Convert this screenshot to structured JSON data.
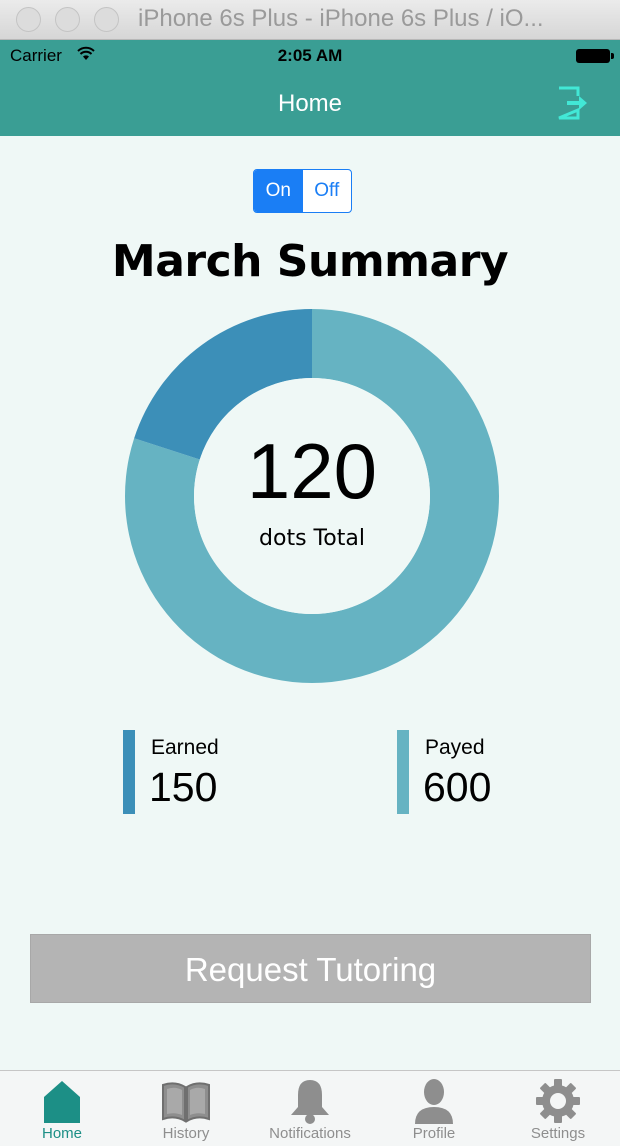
{
  "window": {
    "title": "iPhone 6s Plus - iPhone 6s Plus / iO..."
  },
  "status_bar": {
    "carrier": "Carrier",
    "time": "2:05 AM"
  },
  "nav": {
    "title": "Home"
  },
  "toggle": {
    "on_label": "On",
    "off_label": "Off",
    "selected": "On"
  },
  "summary": {
    "title": "March Summary",
    "total": "120",
    "total_label": "dots Total",
    "earned_label": "Earned",
    "earned_value": "150",
    "payed_label": "Payed",
    "payed_value": "600"
  },
  "donut": {
    "segments": [
      {
        "key": "payed",
        "fraction": 0.8,
        "color": "#66b3c2"
      },
      {
        "key": "earned",
        "fraction": 0.2,
        "color": "#3c8fb8"
      }
    ]
  },
  "actions": {
    "request_label": "Request Tutoring"
  },
  "tabbar": {
    "active": "Home",
    "items": [
      {
        "label": "Home",
        "icon": "house-icon"
      },
      {
        "label": "History",
        "icon": "book-icon"
      },
      {
        "label": "Notifications",
        "icon": "bell-icon"
      },
      {
        "label": "Profile",
        "icon": "person-icon"
      },
      {
        "label": "Settings",
        "icon": "gear-icon"
      }
    ]
  },
  "colors": {
    "brand": "#3a9e94",
    "background": "#eff8f6",
    "toggle_accent": "#1a7ef5",
    "button_disabled": "#b4b4b4",
    "tab_active": "#1c8f86",
    "tab_inactive": "#8e8e8e"
  }
}
